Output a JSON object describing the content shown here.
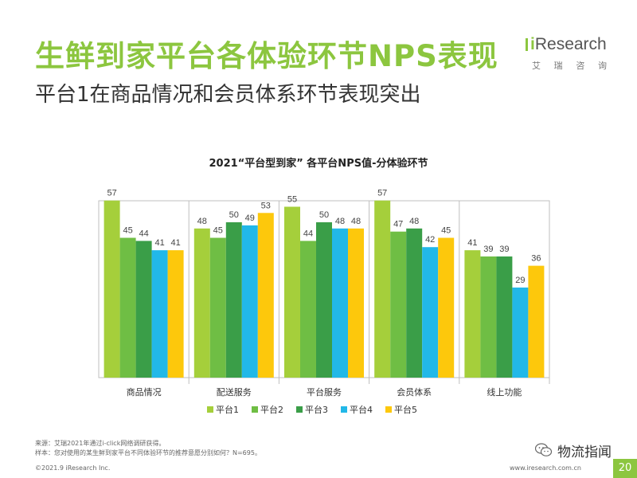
{
  "header": {
    "title": "生鲜到家平台各体验环节NPS表现",
    "subtitle": "平台1在商品情况和会员体系环节表现突出"
  },
  "logo": {
    "brand_i": "i",
    "brand_word": "Research",
    "sub_chars": [
      "艾",
      "瑞",
      "咨",
      "询"
    ]
  },
  "chart_data": {
    "type": "bar",
    "title": "2021“平台型到家” 各平台NPS值-分体验环节",
    "categories": [
      "商品情况",
      "配送服务",
      "平台服务",
      "会员体系",
      "线上功能"
    ],
    "series": [
      {
        "name": "平台1",
        "color": "#a5cf3b",
        "values": [
          57,
          48,
          55,
          57,
          41
        ]
      },
      {
        "name": "平台2",
        "color": "#6fbe44",
        "values": [
          45,
          45,
          44,
          47,
          39
        ]
      },
      {
        "name": "平台3",
        "color": "#3a9e48",
        "values": [
          44,
          50,
          50,
          48,
          39
        ]
      },
      {
        "name": "平台4",
        "color": "#22b8e8",
        "values": [
          41,
          49,
          48,
          42,
          29
        ]
      },
      {
        "name": "平台5",
        "color": "#fdc80c",
        "values": [
          41,
          53,
          48,
          45,
          36
        ]
      }
    ],
    "ylim": [
      0,
      60
    ],
    "legend_position": "bottom",
    "grid": false
  },
  "footer": {
    "source_line1": "来源：艾瑞2021年通过i-click网络调研获得。",
    "source_line2": "样本：您对使用的某生鲜到家平台不同体验环节的推荐意愿分别如何？N=695。",
    "copyright": "©2021.9 iResearch Inc.",
    "website": "www.iresearch.com.cn",
    "page_number": "20",
    "wechat_name": "物流指闻"
  }
}
